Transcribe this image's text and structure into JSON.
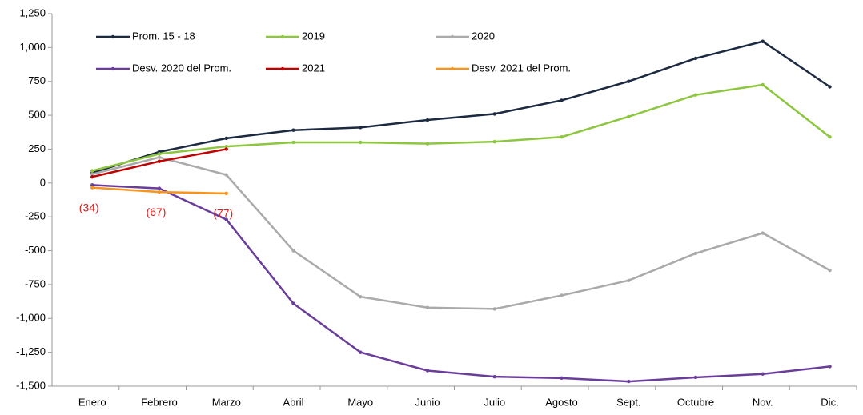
{
  "chart_data": {
    "type": "line",
    "categories": [
      "Enero",
      "Febrero",
      "Marzo",
      "Abril",
      "Mayo",
      "Junio",
      "Julio",
      "Agosto",
      "Sept.",
      "Octubre",
      "Nov.",
      "Dic."
    ],
    "ylim": [
      -1500,
      1250
    ],
    "yticks": [
      {
        "value": -1500,
        "label": "-1,500"
      },
      {
        "value": -1250,
        "label": "-1,250"
      },
      {
        "value": -1000,
        "label": "-1,000"
      },
      -750,
      -500,
      -250,
      0,
      250,
      500,
      750,
      {
        "value": 1000,
        "label": "1,000"
      },
      {
        "value": 1250,
        "label": "1,250"
      }
    ],
    "legend": "top",
    "series": [
      {
        "name": "Prom. 15 - 18",
        "color": "#1b2a41",
        "values": [
          75,
          230,
          330,
          390,
          410,
          465,
          510,
          610,
          750,
          920,
          1045,
          710
        ]
      },
      {
        "name": "2019",
        "color": "#8dc63f",
        "values": [
          90,
          215,
          270,
          300,
          300,
          290,
          305,
          340,
          490,
          650,
          725,
          340
        ]
      },
      {
        "name": "2020",
        "color": "#aaaaaa",
        "values": [
          65,
          190,
          60,
          -500,
          -840,
          -920,
          -930,
          -830,
          -720,
          -520,
          -370,
          -645
        ]
      },
      {
        "name": "Desv. 2020 del Prom.",
        "color": "#6a3d9a",
        "values": [
          -15,
          -40,
          -270,
          -890,
          -1250,
          -1385,
          -1430,
          -1440,
          -1465,
          -1435,
          -1410,
          -1355
        ]
      },
      {
        "name": "2021",
        "color": "#c00000",
        "values": [
          45,
          160,
          250,
          null,
          null,
          null,
          null,
          null,
          null,
          null,
          null,
          null
        ]
      },
      {
        "name": "Desv. 2021 del Prom.",
        "color": "#f7941d",
        "values": [
          -34,
          -67,
          -77,
          null,
          null,
          null,
          null,
          null,
          null,
          null,
          null,
          null
        ],
        "value_labels": [
          "(34)",
          "(67)",
          "(77)",
          null,
          null,
          null,
          null,
          null,
          null,
          null,
          null,
          null
        ],
        "label_color": "#e02020"
      }
    ]
  }
}
